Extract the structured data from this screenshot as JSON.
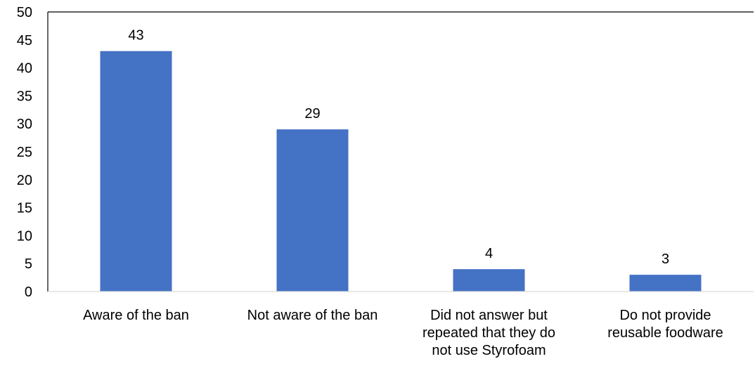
{
  "chart_data": {
    "type": "bar",
    "categories": [
      [
        "Aware of the ban"
      ],
      [
        "Not aware of the ban"
      ],
      [
        "Did not answer but",
        "repeated that they do",
        "not use Styrofoam"
      ],
      [
        "Do not provide",
        "reusable foodware"
      ]
    ],
    "values": [
      43,
      29,
      4,
      3
    ],
    "ylim": [
      0,
      50
    ],
    "yticks": [
      0,
      5,
      10,
      15,
      20,
      25,
      30,
      35,
      40,
      45,
      50
    ],
    "grid": false,
    "legend": "none",
    "bar_color": "#4472c4",
    "axis_color": "#000000"
  }
}
